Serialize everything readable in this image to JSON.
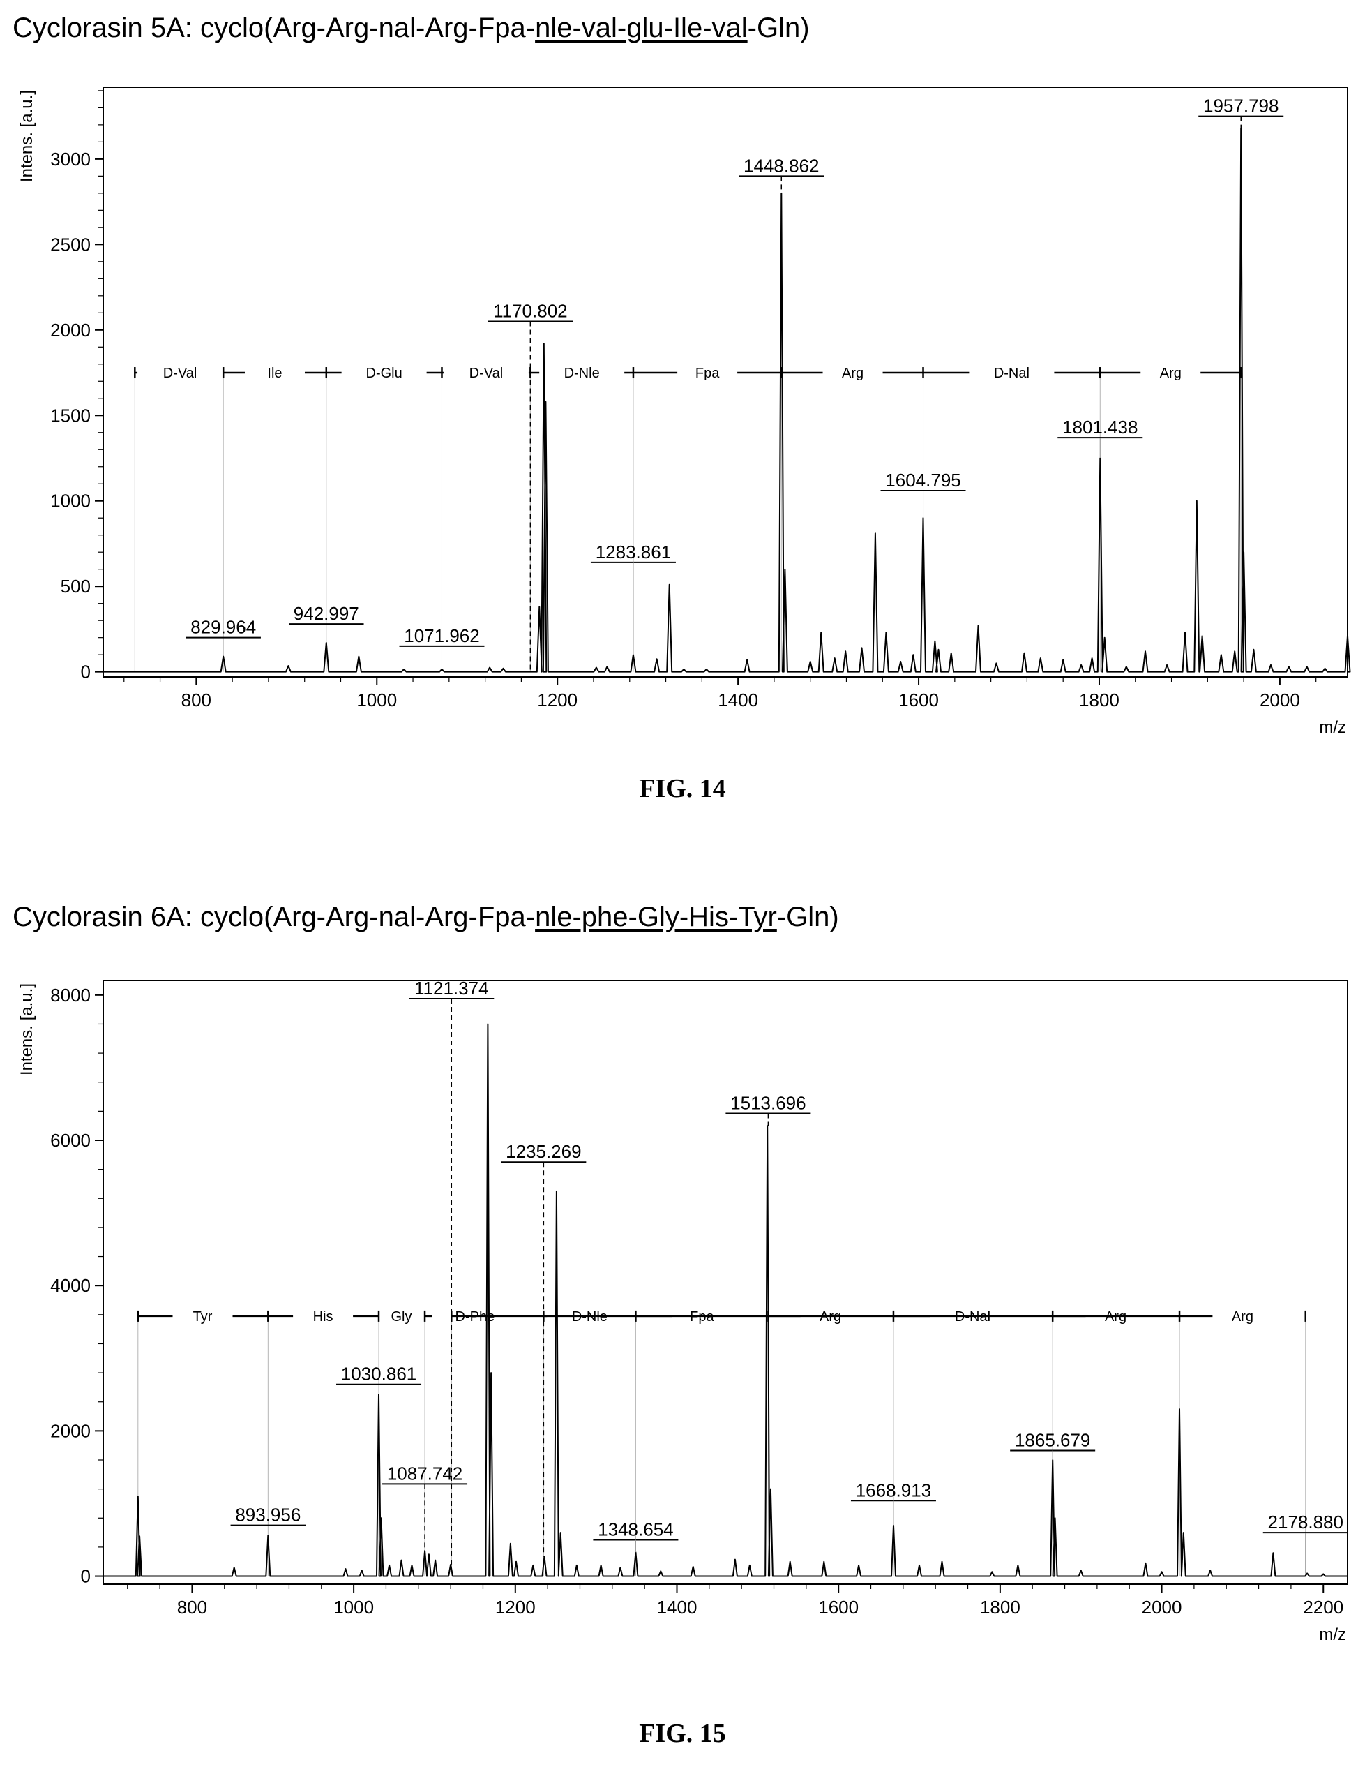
{
  "chart_data": [
    {
      "type": "line",
      "title_prefix": "Cyclorasin 5A: cyclo(Arg-Arg-nal-Arg-Fpa-",
      "title_underlined": "nle-val-glu-Ile-val",
      "title_suffix": "-Gln)",
      "caption": "FIG. 14",
      "ylabel": "Intens. [a.u.]",
      "xlabel": "m/z",
      "xlim": [
        697,
        2075
      ],
      "ylim": [
        -30,
        3420
      ],
      "xticks": [
        800,
        1000,
        1200,
        1400,
        1600,
        1800,
        2000
      ],
      "yticks": [
        0,
        500,
        1000,
        1500,
        2000,
        2500,
        3000
      ],
      "peaks": [
        [
          830,
          90
        ],
        [
          902,
          35
        ],
        [
          944,
          170
        ],
        [
          980,
          90
        ],
        [
          1030,
          15
        ],
        [
          1072,
          15
        ],
        [
          1125,
          25
        ],
        [
          1140,
          20
        ],
        [
          1180,
          380
        ],
        [
          1185,
          1920
        ],
        [
          1187,
          1580
        ],
        [
          1243,
          25
        ],
        [
          1255,
          30
        ],
        [
          1284,
          100
        ],
        [
          1310,
          75
        ],
        [
          1324,
          510
        ],
        [
          1340,
          15
        ],
        [
          1365,
          15
        ],
        [
          1410,
          70
        ],
        [
          1448,
          2800
        ],
        [
          1452,
          600
        ],
        [
          1480,
          60
        ],
        [
          1492,
          230
        ],
        [
          1507,
          80
        ],
        [
          1519,
          120
        ],
        [
          1537,
          140
        ],
        [
          1552,
          810
        ],
        [
          1564,
          230
        ],
        [
          1580,
          60
        ],
        [
          1594,
          100
        ],
        [
          1605,
          900
        ],
        [
          1618,
          180
        ],
        [
          1622,
          130
        ],
        [
          1636,
          110
        ],
        [
          1666,
          270
        ],
        [
          1686,
          50
        ],
        [
          1717,
          110
        ],
        [
          1735,
          80
        ],
        [
          1760,
          70
        ],
        [
          1780,
          40
        ],
        [
          1792,
          80
        ],
        [
          1801,
          1250
        ],
        [
          1806,
          200
        ],
        [
          1830,
          30
        ],
        [
          1851,
          120
        ],
        [
          1875,
          40
        ],
        [
          1895,
          230
        ],
        [
          1908,
          1000
        ],
        [
          1914,
          210
        ],
        [
          1935,
          100
        ],
        [
          1950,
          120
        ],
        [
          1957,
          3180
        ],
        [
          1960,
          700
        ],
        [
          1971,
          130
        ],
        [
          1990,
          40
        ],
        [
          2010,
          30
        ],
        [
          2030,
          30
        ],
        [
          2050,
          20
        ],
        [
          2075,
          210
        ]
      ],
      "labels": [
        {
          "text": "829.964",
          "x": 830,
          "y": 200,
          "connector": "none"
        },
        {
          "text": "942.997",
          "x": 944,
          "y": 280,
          "connector": "none"
        },
        {
          "text": "1071.962",
          "x": 1072,
          "y": 150,
          "connector": "solid"
        },
        {
          "text": "1170.802",
          "x": 1170,
          "y": 2050,
          "connector": "dashed"
        },
        {
          "text": "1283.861",
          "x": 1284,
          "y": 640,
          "connector": "solid"
        },
        {
          "text": "1448.862",
          "x": 1448,
          "y": 2900,
          "connector": "dashed"
        },
        {
          "text": "1604.795",
          "x": 1605,
          "y": 1060,
          "connector": "solid"
        },
        {
          "text": "1801.438",
          "x": 1801,
          "y": 1370,
          "connector": "solid"
        },
        {
          "text": "1957.798",
          "x": 1957,
          "y": 3250,
          "connector": "dashed"
        }
      ],
      "ladder": {
        "y": 1750,
        "end_left": 732,
        "end_right": 1957,
        "marks": [
          830,
          944,
          1072,
          1170,
          1284,
          1448,
          1605,
          1801,
          1957
        ],
        "segments": [
          {
            "text": "D-Val",
            "x": 782
          },
          {
            "text": "Ile",
            "x": 887
          },
          {
            "text": "D-Glu",
            "x": 1008
          },
          {
            "text": "D-Val",
            "x": 1121
          },
          {
            "text": "D-Nle",
            "x": 1227
          },
          {
            "text": "Fpa",
            "x": 1366
          },
          {
            "text": "Arg",
            "x": 1527
          },
          {
            "text": "D-Nal",
            "x": 1703
          },
          {
            "text": "Arg",
            "x": 1879
          }
        ]
      }
    },
    {
      "type": "line",
      "title_prefix": "Cyclorasin 6A: cyclo(Arg-Arg-nal-Arg-Fpa-",
      "title_underlined": "nle-phe-Gly-His-Tyr",
      "title_suffix": "-Gln)",
      "caption": "FIG. 15",
      "ylabel": "Intens. [a.u.]",
      "xlabel": "m/z",
      "xlim": [
        690,
        2230
      ],
      "ylim": [
        -110,
        8200
      ],
      "xticks": [
        800,
        1000,
        1200,
        1400,
        1600,
        1800,
        2000,
        2200
      ],
      "yticks": [
        0,
        2000,
        4000,
        6000,
        8000
      ],
      "peaks": [
        [
          733,
          1100
        ],
        [
          735,
          550
        ],
        [
          852,
          120
        ],
        [
          894,
          560
        ],
        [
          990,
          100
        ],
        [
          1010,
          80
        ],
        [
          1031,
          2500
        ],
        [
          1034,
          800
        ],
        [
          1044,
          150
        ],
        [
          1059,
          220
        ],
        [
          1072,
          150
        ],
        [
          1088,
          350
        ],
        [
          1093,
          300
        ],
        [
          1101,
          220
        ],
        [
          1120,
          160
        ],
        [
          1166,
          7600
        ],
        [
          1170,
          2800
        ],
        [
          1194,
          450
        ],
        [
          1201,
          200
        ],
        [
          1222,
          150
        ],
        [
          1236,
          270
        ],
        [
          1251,
          5300
        ],
        [
          1256,
          600
        ],
        [
          1276,
          150
        ],
        [
          1306,
          150
        ],
        [
          1330,
          120
        ],
        [
          1349,
          330
        ],
        [
          1380,
          70
        ],
        [
          1420,
          130
        ],
        [
          1472,
          230
        ],
        [
          1490,
          150
        ],
        [
          1512,
          6200
        ],
        [
          1516,
          1200
        ],
        [
          1540,
          200
        ],
        [
          1582,
          200
        ],
        [
          1625,
          150
        ],
        [
          1668,
          700
        ],
        [
          1700,
          150
        ],
        [
          1728,
          200
        ],
        [
          1790,
          60
        ],
        [
          1822,
          150
        ],
        [
          1865,
          1600
        ],
        [
          1868,
          800
        ],
        [
          1900,
          80
        ],
        [
          1980,
          180
        ],
        [
          2000,
          60
        ],
        [
          2022,
          2300
        ],
        [
          2027,
          600
        ],
        [
          2060,
          80
        ],
        [
          2138,
          320
        ],
        [
          2180,
          40
        ],
        [
          2200,
          30
        ]
      ],
      "labels": [
        {
          "text": "893.956",
          "x": 894,
          "y": 700,
          "connector": "none"
        },
        {
          "text": "1030.861",
          "x": 1031,
          "y": 2640,
          "connector": "none"
        },
        {
          "text": "1087.742",
          "x": 1088,
          "y": 1270,
          "connector": "dashed"
        },
        {
          "text": "1121.374",
          "x": 1121,
          "y": 7950,
          "connector": "dashed"
        },
        {
          "text": "1235.269",
          "x": 1235,
          "y": 5700,
          "connector": "dashed"
        },
        {
          "text": "1348.654",
          "x": 1349,
          "y": 500,
          "connector": "solid"
        },
        {
          "text": "1513.696",
          "x": 1513,
          "y": 6370,
          "connector": "dashed"
        },
        {
          "text": "1668.913",
          "x": 1668,
          "y": 1040,
          "connector": "solid"
        },
        {
          "text": "1865.679",
          "x": 1865,
          "y": 1730,
          "connector": "solid"
        },
        {
          "text": "2178.880",
          "x": 2178,
          "y": 600,
          "connector": "solid"
        }
      ],
      "ladder": {
        "y": 3580,
        "end_left": 733,
        "end_right": 2178,
        "marks": [
          894,
          1031,
          1088,
          1121,
          1235,
          1349,
          1513,
          1668,
          1865,
          2022
        ],
        "segments": [
          {
            "text": "Tyr",
            "x": 813
          },
          {
            "text": "His",
            "x": 962
          },
          {
            "text": "Gly",
            "x": 1059
          },
          {
            "text": "D-Phe",
            "x": 1150
          },
          {
            "text": "D-Nle",
            "x": 1292
          },
          {
            "text": "Fpa",
            "x": 1431
          },
          {
            "text": "Arg",
            "x": 1590
          },
          {
            "text": "D-Nal",
            "x": 1766
          },
          {
            "text": "Arg",
            "x": 1943
          },
          {
            "text": "Arg",
            "x": 2100
          }
        ]
      }
    }
  ]
}
